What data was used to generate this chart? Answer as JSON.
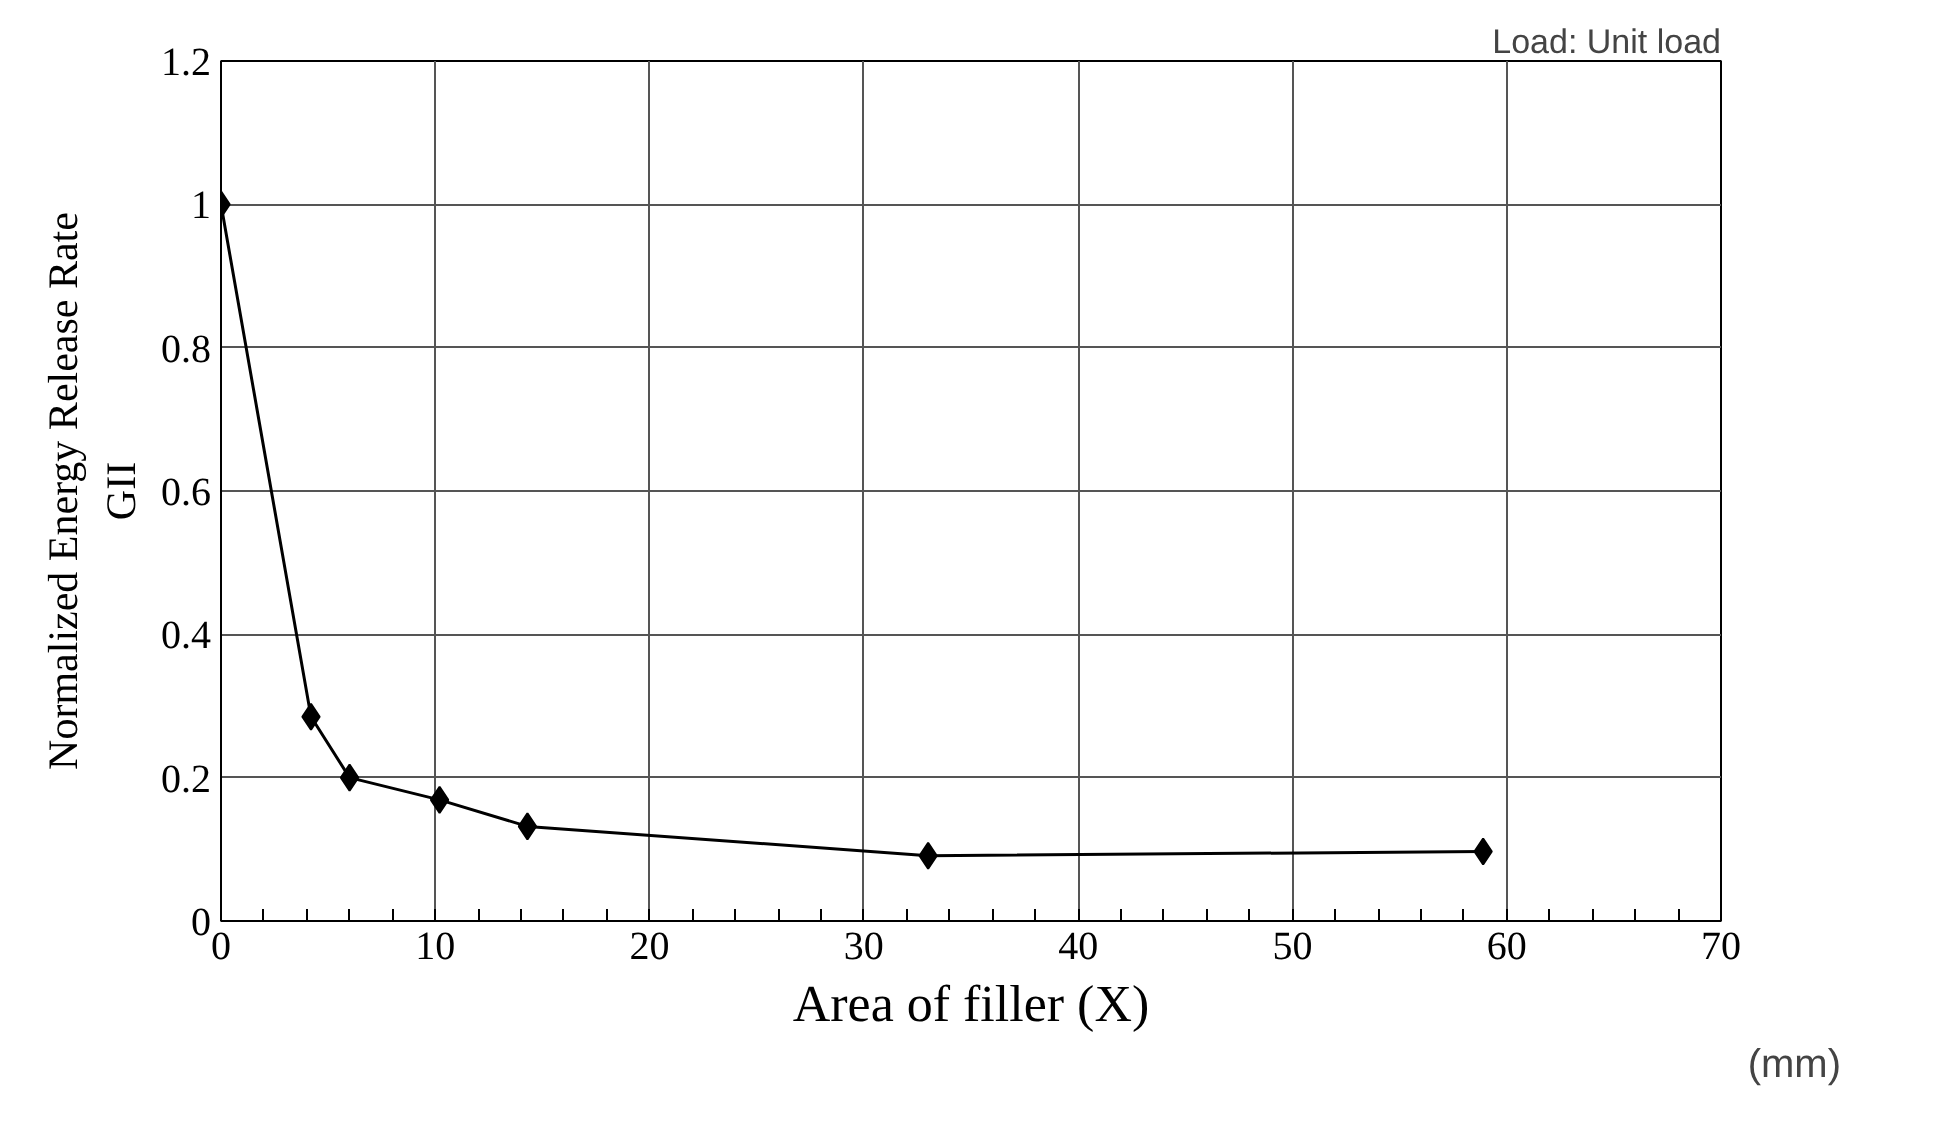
{
  "chart_data": {
    "type": "line",
    "xlabel": "Area of filler (X)",
    "ylabel": "Normalized Energy Release Rate\nGII",
    "annotations": [
      "Load: Unit load",
      "(mm)"
    ],
    "x": [
      0,
      4.2,
      6.0,
      10.2,
      14.3,
      33.0,
      58.9
    ],
    "series": [
      {
        "color": "#000000",
        "values": [
          1.0,
          0.285,
          0.2,
          0.169,
          0.132,
          0.091,
          0.097
        ]
      }
    ],
    "xlim": [
      0,
      70
    ],
    "ylim": [
      0,
      1.2
    ],
    "xticks": [
      0,
      {
        "value": 2,
        "label": null
      },
      {
        "value": 4,
        "label": null
      },
      {
        "value": 6,
        "label": null
      },
      {
        "value": 8,
        "label": null
      },
      10,
      {
        "value": 12,
        "label": null
      },
      {
        "value": 14,
        "label": null
      },
      {
        "value": 16,
        "label": null
      },
      {
        "value": 18,
        "label": null
      },
      20,
      {
        "value": 22,
        "label": null
      },
      {
        "value": 24,
        "label": null
      },
      {
        "value": 26,
        "label": null
      },
      {
        "value": 28,
        "label": null
      },
      30,
      {
        "value": 32,
        "label": null
      },
      {
        "value": 34,
        "label": null
      },
      {
        "value": 36,
        "label": null
      },
      {
        "value": 38,
        "label": null
      },
      40,
      {
        "value": 42,
        "label": null
      },
      {
        "value": 44,
        "label": null
      },
      {
        "value": 46,
        "label": null
      },
      {
        "value": 48,
        "label": null
      },
      50,
      {
        "value": 52,
        "label": null
      },
      {
        "value": 54,
        "label": null
      },
      {
        "value": 56,
        "label": null
      },
      {
        "value": 58,
        "label": null
      },
      60,
      {
        "value": 62,
        "label": null
      },
      {
        "value": 64,
        "label": null
      },
      {
        "value": 66,
        "label": null
      },
      {
        "value": 68,
        "label": null
      },
      70
    ],
    "yticks": [
      0,
      0.2,
      0.4,
      0.6,
      0.8,
      1,
      1.2
    ],
    "grid": true,
    "marker": "diamond",
    "line_style": "solid"
  }
}
